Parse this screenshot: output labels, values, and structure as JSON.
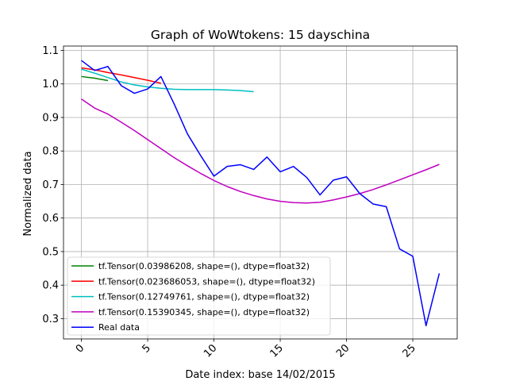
{
  "chart_data": {
    "type": "line",
    "title": "Graph of WoWtokens: 15 dayschina",
    "xlabel": "Date index: base 14/02/2015",
    "ylabel": "Normalized data",
    "xlim": [
      -1.35,
      28.35
    ],
    "ylim": [
      0.2395,
      1.113
    ],
    "xticks": [
      0,
      5,
      10,
      15,
      20,
      25
    ],
    "yticks": [
      0.3,
      0.4,
      0.5,
      0.6,
      0.7,
      0.8,
      0.9,
      1.0,
      1.1
    ],
    "xtick_labels": [
      "0",
      "5",
      "10",
      "15",
      "20",
      "25"
    ],
    "ytick_labels": [
      "0.3",
      "0.4",
      "0.5",
      "0.6",
      "0.7",
      "0.8",
      "0.9",
      "1.0",
      "1.1"
    ],
    "grid": true,
    "legend_position": "lower-left",
    "series": [
      {
        "name": "tf.Tensor(0.03986208, shape=(), dtype=float32)",
        "color": "#008000",
        "x": [
          0,
          1,
          2
        ],
        "y": [
          1.022,
          1.017,
          1.01
        ]
      },
      {
        "name": "tf.Tensor(0.023686053, shape=(), dtype=float32)",
        "color": "#ff0000",
        "x": [
          0,
          1,
          2,
          3,
          4,
          5,
          6
        ],
        "y": [
          1.048,
          1.042,
          1.034,
          1.027,
          1.019,
          1.011,
          1.002
        ]
      },
      {
        "name": "tf.Tensor(0.12749761, shape=(), dtype=float32)",
        "color": "#00bfbf",
        "x": [
          0,
          1,
          2,
          3,
          4,
          5,
          6,
          7,
          8,
          9,
          10,
          11,
          12,
          13
        ],
        "y": [
          1.044,
          1.032,
          1.019,
          1.006,
          0.997,
          0.991,
          0.987,
          0.984,
          0.983,
          0.983,
          0.983,
          0.982,
          0.98,
          0.977
        ]
      },
      {
        "name": "tf.Tensor(0.15390345, shape=(), dtype=float32)",
        "color": "#bf00bf",
        "x": [
          0,
          1,
          2,
          3,
          4,
          5,
          6,
          7,
          8,
          9,
          10,
          11,
          12,
          13,
          14,
          15,
          16,
          17,
          18,
          19,
          20,
          21,
          22,
          23,
          24,
          25,
          26,
          27
        ],
        "y": [
          0.955,
          0.928,
          0.91,
          0.886,
          0.861,
          0.834,
          0.807,
          0.78,
          0.756,
          0.733,
          0.712,
          0.694,
          0.679,
          0.667,
          0.657,
          0.65,
          0.646,
          0.645,
          0.647,
          0.654,
          0.663,
          0.673,
          0.685,
          0.699,
          0.714,
          0.729,
          0.744,
          0.76
        ]
      },
      {
        "name": "Real data",
        "color": "#0000ff",
        "x": [
          0,
          1,
          2,
          3,
          4,
          5,
          6,
          7,
          8,
          9,
          10,
          11,
          12,
          13,
          14,
          15,
          16,
          17,
          18,
          19,
          20,
          21,
          22,
          23,
          24,
          25,
          26,
          27
        ],
        "y": [
          1.07,
          1.04,
          1.052,
          0.995,
          0.972,
          0.985,
          1.022,
          0.94,
          0.851,
          0.786,
          0.725,
          0.754,
          0.759,
          0.745,
          0.782,
          0.738,
          0.754,
          0.721,
          0.669,
          0.713,
          0.723,
          0.673,
          0.642,
          0.634,
          0.508,
          0.486,
          0.279,
          0.435
        ]
      }
    ]
  }
}
